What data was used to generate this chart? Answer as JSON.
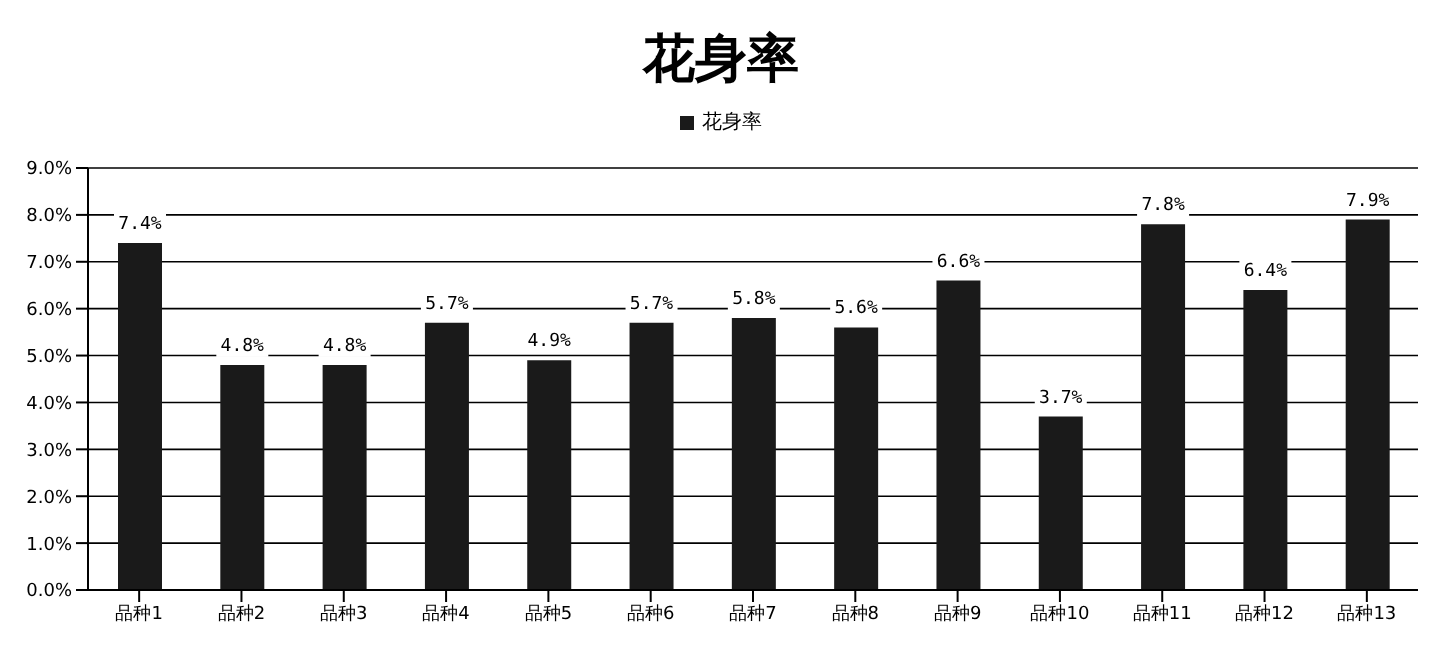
{
  "chart_data": {
    "type": "bar",
    "title": "花身率",
    "categories": [
      "品种1",
      "品种2",
      "品种3",
      "品种4",
      "品种5",
      "品种6",
      "品种7",
      "品种8",
      "品种9",
      "品种10",
      "品种11",
      "品种12",
      "品种13"
    ],
    "series": [
      {
        "name": "花身率",
        "color": "#1a1a1a",
        "values": [
          7.4,
          4.8,
          4.8,
          5.7,
          4.9,
          5.7,
          5.8,
          5.6,
          6.6,
          3.7,
          7.8,
          6.4,
          7.9
        ],
        "value_labels": [
          "7.4%",
          "4.8%",
          "4.8%",
          "5.7%",
          "4.9%",
          "5.7%",
          "5.8%",
          "5.6%",
          "6.6%",
          "3.7%",
          "7.8%",
          "6.4%",
          "7.9%"
        ]
      }
    ],
    "ylim": [
      0,
      9
    ],
    "yticks": [
      {
        "value": 0,
        "label": "0.0%"
      },
      {
        "value": 1,
        "label": "1.0%"
      },
      {
        "value": 2,
        "label": "2.0%"
      },
      {
        "value": 3,
        "label": "3.0%"
      },
      {
        "value": 4,
        "label": "4.0%"
      },
      {
        "value": 5,
        "label": "5.0%"
      },
      {
        "value": 6,
        "label": "6.0%"
      },
      {
        "value": 7,
        "label": "7.0%"
      },
      {
        "value": 8,
        "label": "8.0%"
      },
      {
        "value": 9,
        "label": "9.0%"
      }
    ],
    "grid": "y",
    "legend": "top"
  }
}
